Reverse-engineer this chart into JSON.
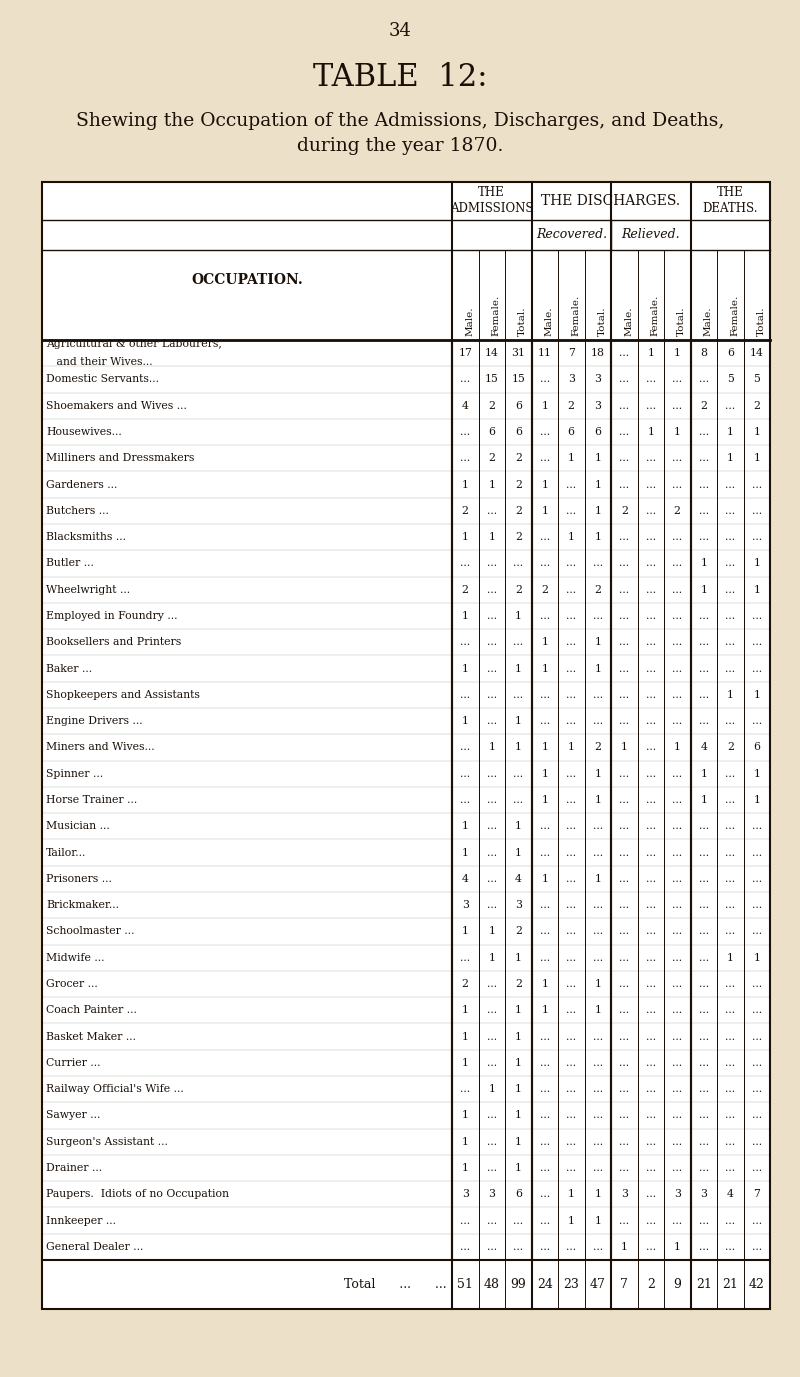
{
  "page_number": "34",
  "title": "TABLE  12:",
  "subtitle1": "Shewing the Occupation of the Admissions, Discharges, and Deaths,",
  "subtitle2": "during the year 1870.",
  "bg_color": "#EDE0C8",
  "text_color": "#1a1008",
  "rows": [
    {
      "occ": "Agricultural & other Labourers,",
      "occ2": "   and their Wives...",
      "adm_m": "17",
      "adm_f": "14",
      "adm_t": "31",
      "rec_m": "11",
      "rec_f": "7",
      "rec_t": "18",
      "rel_m": "...",
      "rel_f": "1",
      "rel_t": "1",
      "dth_m": "8",
      "dth_f": "6",
      "dth_t": "14"
    },
    {
      "occ": "Domestic Servants...",
      "occ2": "",
      "adm_m": "...",
      "adm_f": "15",
      "adm_t": "15",
      "rec_m": "...",
      "rec_f": "3",
      "rec_t": "3",
      "rel_m": "...",
      "rel_f": "...",
      "rel_t": "...",
      "dth_m": "...",
      "dth_f": "5",
      "dth_t": "5"
    },
    {
      "occ": "Shoemakers and Wives ...",
      "occ2": "",
      "adm_m": "4",
      "adm_f": "2",
      "adm_t": "6",
      "rec_m": "1",
      "rec_f": "2",
      "rec_t": "3",
      "rel_m": "...",
      "rel_f": "...",
      "rel_t": "...",
      "dth_m": "2",
      "dth_f": "...",
      "dth_t": "2"
    },
    {
      "occ": "Housewives...",
      "occ2": "",
      "adm_m": "...",
      "adm_f": "6",
      "adm_t": "6",
      "rec_m": "...",
      "rec_f": "6",
      "rec_t": "6",
      "rel_m": "...",
      "rel_f": "1",
      "rel_t": "1",
      "dth_m": "...",
      "dth_f": "1",
      "dth_t": "1"
    },
    {
      "occ": "Milliners and Dressmakers",
      "occ2": "",
      "adm_m": "...",
      "adm_f": "2",
      "adm_t": "2",
      "rec_m": "...",
      "rec_f": "1",
      "rec_t": "1",
      "rel_m": "...",
      "rel_f": "...",
      "rel_t": "...",
      "dth_m": "...",
      "dth_f": "1",
      "dth_t": "1"
    },
    {
      "occ": "Gardeners ...",
      "occ2": "",
      "adm_m": "1",
      "adm_f": "1",
      "adm_t": "2",
      "rec_m": "1",
      "rec_f": "...",
      "rec_t": "1",
      "rel_m": "...",
      "rel_f": "...",
      "rel_t": "...",
      "dth_m": "...",
      "dth_f": "...",
      "dth_t": "..."
    },
    {
      "occ": "Butchers ...",
      "occ2": "",
      "adm_m": "2",
      "adm_f": "...",
      "adm_t": "2",
      "rec_m": "1",
      "rec_f": "...",
      "rec_t": "1",
      "rel_m": "2",
      "rel_f": "...",
      "rel_t": "2",
      "dth_m": "...",
      "dth_f": "...",
      "dth_t": "..."
    },
    {
      "occ": "Blacksmiths ...",
      "occ2": "",
      "adm_m": "1",
      "adm_f": "1",
      "adm_t": "2",
      "rec_m": "...",
      "rec_f": "1",
      "rec_t": "1",
      "rel_m": "...",
      "rel_f": "...",
      "rel_t": "...",
      "dth_m": "...",
      "dth_f": "...",
      "dth_t": "..."
    },
    {
      "occ": "Butler ...",
      "occ2": "",
      "adm_m": "...",
      "adm_f": "...",
      "adm_t": "...",
      "rec_m": "...",
      "rec_f": "...",
      "rec_t": "...",
      "rel_m": "...",
      "rel_f": "...",
      "rel_t": "...",
      "dth_m": "1",
      "dth_f": "...",
      "dth_t": "1"
    },
    {
      "occ": "Wheelwright ...",
      "occ2": "",
      "adm_m": "2",
      "adm_f": "...",
      "adm_t": "2",
      "rec_m": "2",
      "rec_f": "...",
      "rec_t": "2",
      "rel_m": "...",
      "rel_f": "...",
      "rel_t": "...",
      "dth_m": "1",
      "dth_f": "...",
      "dth_t": "1"
    },
    {
      "occ": "Employed in Foundry ...",
      "occ2": "",
      "adm_m": "1",
      "adm_f": "...",
      "adm_t": "1",
      "rec_m": "...",
      "rec_f": "...",
      "rec_t": "...",
      "rel_m": "...",
      "rel_f": "...",
      "rel_t": "...",
      "dth_m": "...",
      "dth_f": "...",
      "dth_t": "..."
    },
    {
      "occ": "Booksellers and Printers",
      "occ2": "",
      "adm_m": "...",
      "adm_f": "...",
      "adm_t": "...",
      "rec_m": "1",
      "rec_f": "...",
      "rec_t": "1",
      "rel_m": "...",
      "rel_f": "...",
      "rel_t": "...",
      "dth_m": "...",
      "dth_f": "...",
      "dth_t": "..."
    },
    {
      "occ": "Baker ...",
      "occ2": "",
      "adm_m": "1",
      "adm_f": "...",
      "adm_t": "1",
      "rec_m": "1",
      "rec_f": "...",
      "rec_t": "1",
      "rel_m": "...",
      "rel_f": "...",
      "rel_t": "...",
      "dth_m": "...",
      "dth_f": "...",
      "dth_t": "..."
    },
    {
      "occ": "Shopkeepers and Assistants",
      "occ2": "",
      "adm_m": "...",
      "adm_f": "...",
      "adm_t": "...",
      "rec_m": "...",
      "rec_f": "...",
      "rec_t": "...",
      "rel_m": "...",
      "rel_f": "...",
      "rel_t": "...",
      "dth_m": "...",
      "dth_f": "1",
      "dth_t": "1"
    },
    {
      "occ": "Engine Drivers ...",
      "occ2": "",
      "adm_m": "1",
      "adm_f": "...",
      "adm_t": "1",
      "rec_m": "...",
      "rec_f": "...",
      "rec_t": "...",
      "rel_m": "...",
      "rel_f": "...",
      "rel_t": "...",
      "dth_m": "...",
      "dth_f": "...",
      "dth_t": "..."
    },
    {
      "occ": "Miners and Wives...",
      "occ2": "",
      "adm_m": "...",
      "adm_f": "1",
      "adm_t": "1",
      "rec_m": "1",
      "rec_f": "1",
      "rec_t": "2",
      "rel_m": "1",
      "rel_f": "...",
      "rel_t": "1",
      "dth_m": "4",
      "dth_f": "2",
      "dth_t": "6"
    },
    {
      "occ": "Spinner ...",
      "occ2": "",
      "adm_m": "...",
      "adm_f": "...",
      "adm_t": "...",
      "rec_m": "1",
      "rec_f": "...",
      "rec_t": "1",
      "rel_m": "...",
      "rel_f": "...",
      "rel_t": "...",
      "dth_m": "1",
      "dth_f": "...",
      "dth_t": "1"
    },
    {
      "occ": "Horse Trainer ...",
      "occ2": "",
      "adm_m": "...",
      "adm_f": "...",
      "adm_t": "...",
      "rec_m": "1",
      "rec_f": "...",
      "rec_t": "1",
      "rel_m": "...",
      "rel_f": "...",
      "rel_t": "...",
      "dth_m": "1",
      "dth_f": "...",
      "dth_t": "1"
    },
    {
      "occ": "Musician ...",
      "occ2": "",
      "adm_m": "1",
      "adm_f": "...",
      "adm_t": "1",
      "rec_m": "...",
      "rec_f": "...",
      "rec_t": "...",
      "rel_m": "...",
      "rel_f": "...",
      "rel_t": "...",
      "dth_m": "...",
      "dth_f": "...",
      "dth_t": "..."
    },
    {
      "occ": "Tailor...",
      "occ2": "",
      "adm_m": "1",
      "adm_f": "...",
      "adm_t": "1",
      "rec_m": "...",
      "rec_f": "...",
      "rec_t": "...",
      "rel_m": "...",
      "rel_f": "...",
      "rel_t": "...",
      "dth_m": "...",
      "dth_f": "...",
      "dth_t": "..."
    },
    {
      "occ": "Prisoners ...",
      "occ2": "",
      "adm_m": "4",
      "adm_f": "...",
      "adm_t": "4",
      "rec_m": "1",
      "rec_f": "...",
      "rec_t": "1",
      "rel_m": "...",
      "rel_f": "...",
      "rel_t": "...",
      "dth_m": "...",
      "dth_f": "...",
      "dth_t": "..."
    },
    {
      "occ": "Brickmaker...",
      "occ2": "",
      "adm_m": "3",
      "adm_f": "...",
      "adm_t": "3",
      "rec_m": "...",
      "rec_f": "...",
      "rec_t": "...",
      "rel_m": "...",
      "rel_f": "...",
      "rel_t": "...",
      "dth_m": "...",
      "dth_f": "...",
      "dth_t": "..."
    },
    {
      "occ": "Schoolmaster ...",
      "occ2": "",
      "adm_m": "1",
      "adm_f": "1",
      "adm_t": "2",
      "rec_m": "...",
      "rec_f": "...",
      "rec_t": "...",
      "rel_m": "...",
      "rel_f": "...",
      "rel_t": "...",
      "dth_m": "...",
      "dth_f": "...",
      "dth_t": "..."
    },
    {
      "occ": "Midwife ...",
      "occ2": "",
      "adm_m": "...",
      "adm_f": "1",
      "adm_t": "1",
      "rec_m": "...",
      "rec_f": "...",
      "rec_t": "...",
      "rel_m": "...",
      "rel_f": "...",
      "rel_t": "...",
      "dth_m": "...",
      "dth_f": "1",
      "dth_t": "1"
    },
    {
      "occ": "Grocer ...",
      "occ2": "",
      "adm_m": "2",
      "adm_f": "...",
      "adm_t": "2",
      "rec_m": "1",
      "rec_f": "...",
      "rec_t": "1",
      "rel_m": "...",
      "rel_f": "...",
      "rel_t": "...",
      "dth_m": "...",
      "dth_f": "...",
      "dth_t": "..."
    },
    {
      "occ": "Coach Painter ...",
      "occ2": "",
      "adm_m": "1",
      "adm_f": "...",
      "adm_t": "1",
      "rec_m": "1",
      "rec_f": "...",
      "rec_t": "1",
      "rel_m": "...",
      "rel_f": "...",
      "rel_t": "...",
      "dth_m": "...",
      "dth_f": "...",
      "dth_t": "..."
    },
    {
      "occ": "Basket Maker ...",
      "occ2": "",
      "adm_m": "1",
      "adm_f": "...",
      "adm_t": "1",
      "rec_m": "...",
      "rec_f": "...",
      "rec_t": "...",
      "rel_m": "...",
      "rel_f": "...",
      "rel_t": "...",
      "dth_m": "...",
      "dth_f": "...",
      "dth_t": "..."
    },
    {
      "occ": "Currier ...",
      "occ2": "",
      "adm_m": "1",
      "adm_f": "...",
      "adm_t": "1",
      "rec_m": "...",
      "rec_f": "...",
      "rec_t": "...",
      "rel_m": "...",
      "rel_f": "...",
      "rel_t": "...",
      "dth_m": "...",
      "dth_f": "...",
      "dth_t": "..."
    },
    {
      "occ": "Railway Official's Wife ...",
      "occ2": "",
      "adm_m": "...",
      "adm_f": "1",
      "adm_t": "1",
      "rec_m": "...",
      "rec_f": "...",
      "rec_t": "...",
      "rel_m": "...",
      "rel_f": "...",
      "rel_t": "...",
      "dth_m": "...",
      "dth_f": "...",
      "dth_t": "..."
    },
    {
      "occ": "Sawyer ...",
      "occ2": "",
      "adm_m": "1",
      "adm_f": "...",
      "adm_t": "1",
      "rec_m": "...",
      "rec_f": "...",
      "rec_t": "...",
      "rel_m": "...",
      "rel_f": "...",
      "rel_t": "...",
      "dth_m": "...",
      "dth_f": "...",
      "dth_t": "..."
    },
    {
      "occ": "Surgeon's Assistant ...",
      "occ2": "",
      "adm_m": "1",
      "adm_f": "...",
      "adm_t": "1",
      "rec_m": "...",
      "rec_f": "...",
      "rec_t": "...",
      "rel_m": "...",
      "rel_f": "...",
      "rel_t": "...",
      "dth_m": "...",
      "dth_f": "...",
      "dth_t": "..."
    },
    {
      "occ": "Drainer ...",
      "occ2": "",
      "adm_m": "1",
      "adm_f": "...",
      "adm_t": "1",
      "rec_m": "...",
      "rec_f": "...",
      "rec_t": "...",
      "rel_m": "...",
      "rel_f": "...",
      "rel_t": "...",
      "dth_m": "...",
      "dth_f": "...",
      "dth_t": "..."
    },
    {
      "occ": "Paupers.  Idiots of no Occupation",
      "occ2": "",
      "adm_m": "3",
      "adm_f": "3",
      "adm_t": "6",
      "rec_m": "...",
      "rec_f": "1",
      "rec_t": "1",
      "rel_m": "3",
      "rel_f": "...",
      "rel_t": "3",
      "dth_m": "3",
      "dth_f": "4",
      "dth_t": "7"
    },
    {
      "occ": "Innkeeper ...",
      "occ2": "",
      "adm_m": "...",
      "adm_f": "...",
      "adm_t": "...",
      "rec_m": "...",
      "rec_f": "1",
      "rec_t": "1",
      "rel_m": "...",
      "rel_f": "...",
      "rel_t": "...",
      "dth_m": "...",
      "dth_f": "...",
      "dth_t": "..."
    },
    {
      "occ": "General Dealer ...",
      "occ2": "",
      "adm_m": "...",
      "adm_f": "...",
      "adm_t": "...",
      "rec_m": "...",
      "rec_f": "...",
      "rec_t": "...",
      "rel_m": "1",
      "rel_f": "...",
      "rel_t": "1",
      "dth_m": "...",
      "dth_f": "...",
      "dth_t": "..."
    }
  ],
  "totals": {
    "adm_m": "51",
    "adm_f": "48",
    "adm_t": "99",
    "rec_m": "24",
    "rec_f": "23",
    "rec_t": "47",
    "rel_m": "7",
    "rel_f": "2",
    "rel_t": "9",
    "dth_m": "21",
    "dth_f": "21",
    "dth_t": "42"
  }
}
